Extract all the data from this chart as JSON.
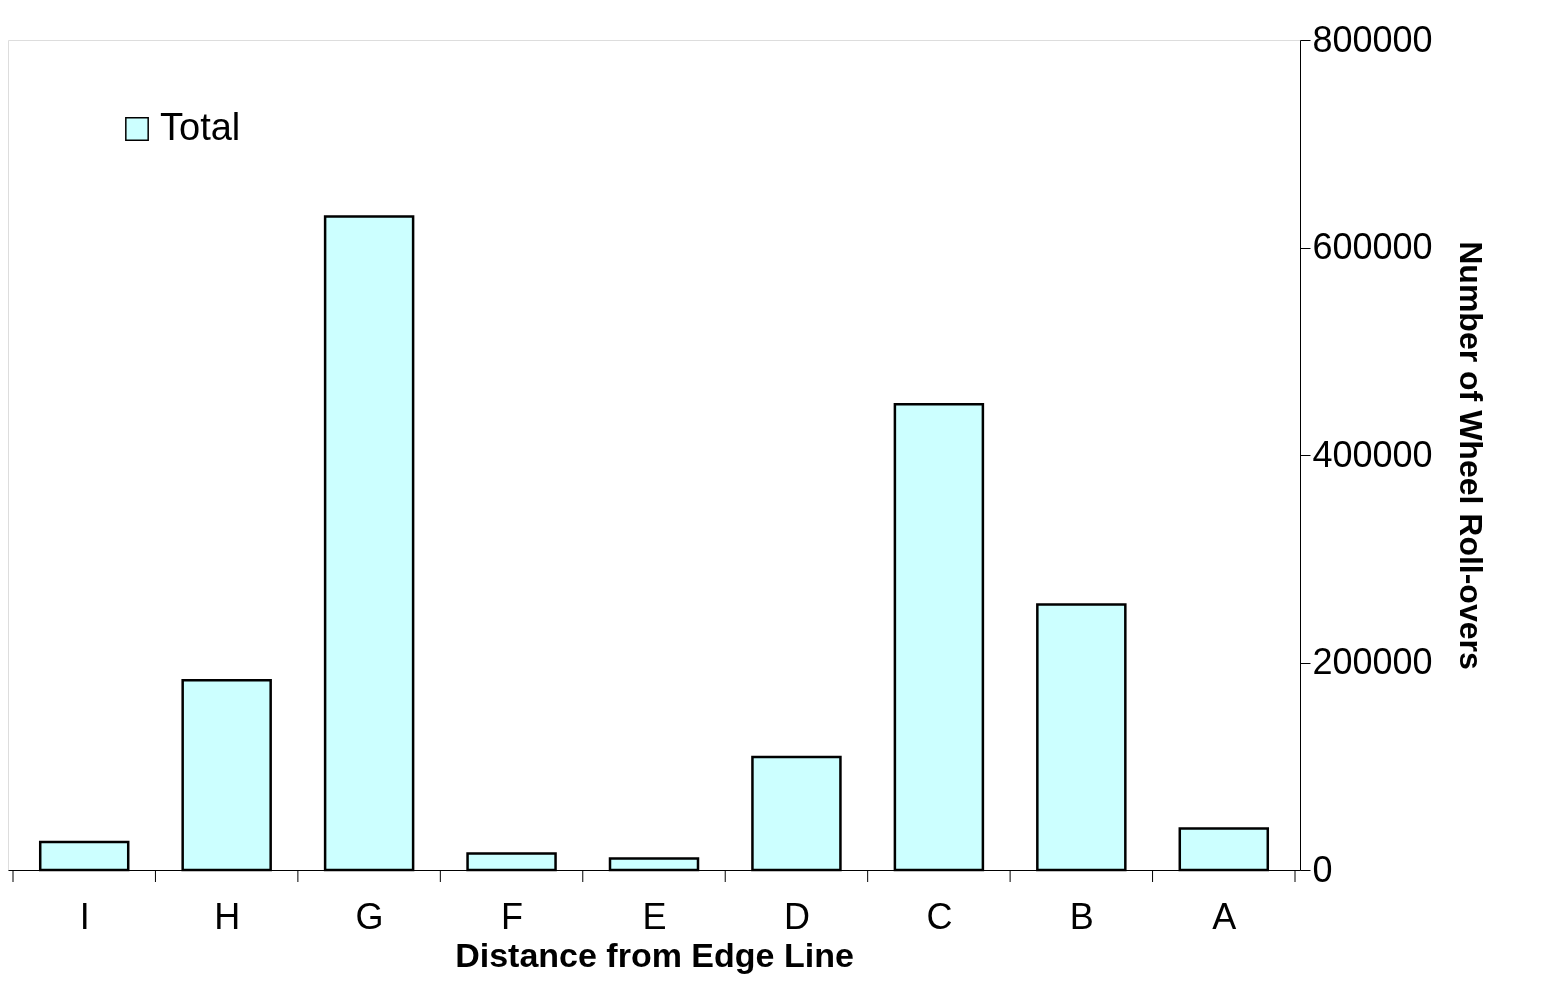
{
  "chart_data": {
    "type": "bar",
    "xlabel": "Distance from Edge Line",
    "ylabel": "Number of Wheel Roll-overs",
    "categories": [
      "I",
      "H",
      "G",
      "F",
      "E",
      "D",
      "C",
      "B",
      "A"
    ],
    "series": [
      {
        "name": "Total",
        "color": "#ccffff",
        "values": [
          27000,
          183000,
          630000,
          16000,
          11000,
          109000,
          449000,
          256000,
          40000
        ]
      }
    ],
    "ylim": [
      0,
      800000
    ],
    "yticks": [
      0,
      200000,
      400000,
      600000,
      800000
    ],
    "grid": false,
    "legend": "top left"
  }
}
